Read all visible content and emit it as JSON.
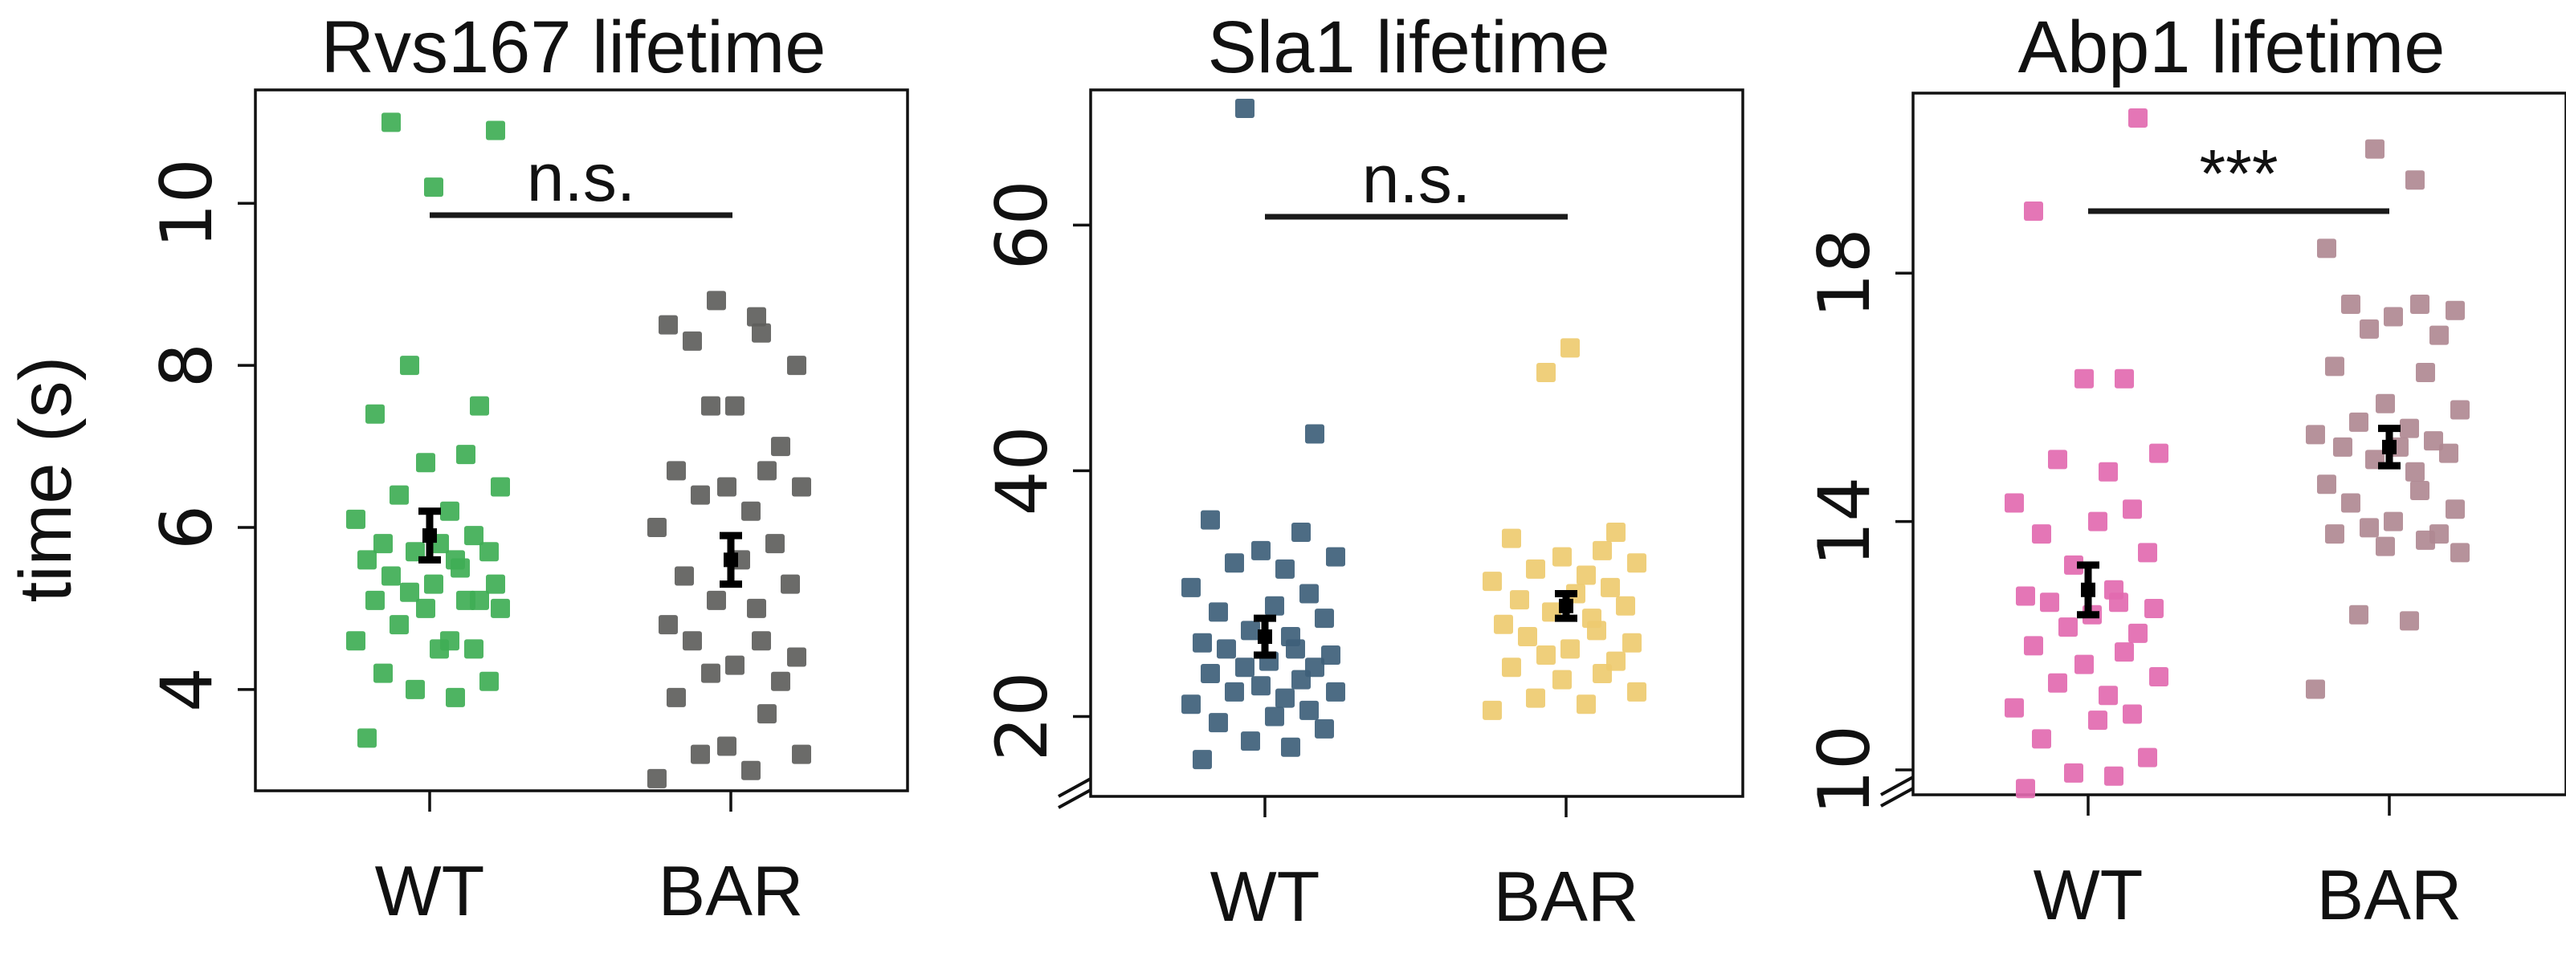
{
  "figure": {
    "ylabel": "time (s)"
  },
  "chart_data": [
    {
      "type": "scatter",
      "title": "Rvs167 lifetime",
      "ylabel": "time (s)",
      "categories": [
        "WT",
        "BAR"
      ],
      "ylim": [
        2.75,
        11.4
      ],
      "yticks": [
        4,
        6,
        8,
        10
      ],
      "axis_break": false,
      "significance": "n.s.",
      "series": [
        {
          "color": "#3fae55",
          "values": [
            3.4,
            3.9,
            4.0,
            4.1,
            4.2,
            4.5,
            4.5,
            4.6,
            4.6,
            4.8,
            5.0,
            5.0,
            5.1,
            5.1,
            5.1,
            5.2,
            5.3,
            5.3,
            5.4,
            5.5,
            5.6,
            5.6,
            5.7,
            5.7,
            5.8,
            5.8,
            5.9,
            6.1,
            6.2,
            6.4,
            6.5,
            6.8,
            6.9,
            7.4,
            7.5,
            8.0,
            10.2,
            10.9,
            11.0
          ],
          "mean": 5.9,
          "err": [
            5.6,
            6.2
          ]
        },
        {
          "color": "#5e5e5c",
          "values": [
            2.9,
            3.0,
            3.2,
            3.2,
            3.3,
            3.7,
            3.9,
            4.1,
            4.2,
            4.3,
            4.4,
            4.6,
            4.6,
            4.8,
            5.0,
            5.1,
            5.3,
            5.4,
            5.6,
            5.8,
            6.0,
            6.2,
            6.4,
            6.5,
            6.5,
            6.7,
            6.7,
            7.0,
            7.5,
            7.5,
            8.0,
            8.3,
            8.4,
            8.5,
            8.6,
            8.8
          ],
          "mean": 5.6,
          "err": [
            5.3,
            5.9
          ]
        }
      ]
    },
    {
      "type": "scatter",
      "title": "Sla1 lifetime",
      "categories": [
        "WT",
        "BAR"
      ],
      "ylim": [
        13.5,
        71
      ],
      "yticks": [
        20,
        40,
        60
      ],
      "axis_break": true,
      "significance": "n.s.",
      "series": [
        {
          "color": "#3e5f7a",
          "values": [
            16.5,
            17.5,
            18.0,
            19.0,
            19.5,
            20.0,
            20.5,
            21.0,
            21.5,
            22.0,
            22.0,
            22.5,
            23.0,
            23.5,
            24.0,
            24.0,
            24.5,
            25.0,
            25.5,
            25.5,
            26.0,
            26.5,
            27.0,
            28.0,
            28.5,
            29.0,
            30.0,
            30.5,
            32.0,
            32.5,
            33.0,
            33.5,
            35.0,
            36.0,
            43.0,
            69.5
          ],
          "mean": 26.5,
          "err": [
            25.0,
            28.0
          ]
        },
        {
          "color": "#eecb70",
          "values": [
            20.5,
            21.0,
            21.5,
            22.0,
            23.0,
            23.5,
            24.0,
            24.5,
            25.0,
            25.5,
            26.0,
            26.5,
            27.0,
            27.5,
            28.0,
            28.5,
            29.0,
            29.5,
            30.0,
            30.5,
            31.0,
            31.5,
            32.0,
            32.5,
            33.0,
            33.5,
            34.5,
            35.0,
            48.0,
            50.0
          ],
          "mean": 29.0,
          "err": [
            28.0,
            30.0
          ]
        }
      ]
    },
    {
      "type": "scatter",
      "title": "Abp1 lifetime",
      "categories": [
        "WT",
        "BAR"
      ],
      "ylim": [
        9.6,
        20.9
      ],
      "yticks": [
        10,
        14,
        18
      ],
      "axis_break": true,
      "significance": "***",
      "series": [
        {
          "color": "#e26ab0",
          "values": [
            9.7,
            9.9,
            9.95,
            10.2,
            10.5,
            10.8,
            10.9,
            11.0,
            11.2,
            11.4,
            11.5,
            11.7,
            11.9,
            12.0,
            12.2,
            12.3,
            12.5,
            12.6,
            12.7,
            12.7,
            12.8,
            12.9,
            13.3,
            13.5,
            13.8,
            14.0,
            14.2,
            14.3,
            14.8,
            15.0,
            15.1,
            16.3,
            16.3,
            19.0,
            20.5
          ],
          "mean": 12.9,
          "err": [
            12.5,
            13.3
          ]
        },
        {
          "color": "#b08992",
          "values": [
            11.3,
            12.4,
            12.5,
            13.5,
            13.6,
            13.7,
            13.8,
            13.8,
            13.9,
            14.0,
            14.2,
            14.3,
            14.5,
            14.6,
            14.8,
            15.0,
            15.1,
            15.2,
            15.2,
            15.3,
            15.4,
            15.5,
            15.6,
            15.8,
            15.9,
            16.4,
            16.5,
            17.0,
            17.1,
            17.3,
            17.4,
            17.5,
            17.5,
            18.4,
            19.5,
            20.0
          ],
          "mean": 15.2,
          "err": [
            14.9,
            15.5
          ]
        }
      ]
    }
  ]
}
